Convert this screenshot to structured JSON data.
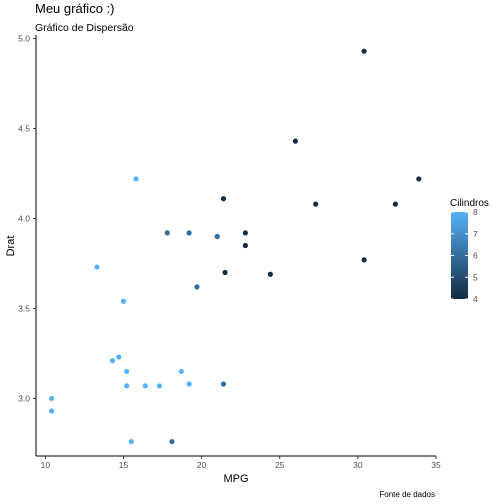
{
  "chart_data": {
    "type": "scatter",
    "title": "Meu gráfico :)",
    "subtitle": "Gráfico de Dispersão",
    "xlabel": "MPG",
    "ylabel": "Drat",
    "caption": "Fonte de dados",
    "xlim": [
      9.4,
      35.0
    ],
    "ylim": [
      2.68,
      5.02
    ],
    "x_ticks": [
      10,
      15,
      20,
      25,
      30,
      35
    ],
    "y_ticks": [
      3.0,
      3.5,
      4.0,
      4.5,
      5.0
    ],
    "grid": false,
    "legend": {
      "title": "Cilindros",
      "position": "right",
      "type": "continuous-colorbar",
      "range": [
        4,
        8
      ],
      "ticks": [
        4,
        5,
        6,
        7,
        8
      ],
      "low_color": "#132B43",
      "high_color": "#56B1F7"
    },
    "points": [
      {
        "x": 21.0,
        "y": 3.9,
        "color_value": 6
      },
      {
        "x": 21.0,
        "y": 3.9,
        "color_value": 6
      },
      {
        "x": 22.8,
        "y": 3.85,
        "color_value": 4
      },
      {
        "x": 21.4,
        "y": 3.08,
        "color_value": 6
      },
      {
        "x": 18.7,
        "y": 3.15,
        "color_value": 8
      },
      {
        "x": 18.1,
        "y": 2.76,
        "color_value": 6
      },
      {
        "x": 14.3,
        "y": 3.21,
        "color_value": 8
      },
      {
        "x": 24.4,
        "y": 3.69,
        "color_value": 4
      },
      {
        "x": 22.8,
        "y": 3.92,
        "color_value": 4
      },
      {
        "x": 19.2,
        "y": 3.92,
        "color_value": 6
      },
      {
        "x": 17.8,
        "y": 3.92,
        "color_value": 6
      },
      {
        "x": 16.4,
        "y": 3.07,
        "color_value": 8
      },
      {
        "x": 17.3,
        "y": 3.07,
        "color_value": 8
      },
      {
        "x": 15.2,
        "y": 3.07,
        "color_value": 8
      },
      {
        "x": 10.4,
        "y": 2.93,
        "color_value": 8
      },
      {
        "x": 10.4,
        "y": 3.0,
        "color_value": 8
      },
      {
        "x": 14.7,
        "y": 3.23,
        "color_value": 8
      },
      {
        "x": 32.4,
        "y": 4.08,
        "color_value": 4
      },
      {
        "x": 30.4,
        "y": 4.93,
        "color_value": 4
      },
      {
        "x": 33.9,
        "y": 4.22,
        "color_value": 4
      },
      {
        "x": 21.5,
        "y": 3.7,
        "color_value": 4
      },
      {
        "x": 15.5,
        "y": 2.76,
        "color_value": 8
      },
      {
        "x": 15.2,
        "y": 3.15,
        "color_value": 8
      },
      {
        "x": 13.3,
        "y": 3.73,
        "color_value": 8
      },
      {
        "x": 19.2,
        "y": 3.08,
        "color_value": 8
      },
      {
        "x": 27.3,
        "y": 4.08,
        "color_value": 4
      },
      {
        "x": 26.0,
        "y": 4.43,
        "color_value": 4
      },
      {
        "x": 30.4,
        "y": 3.77,
        "color_value": 4
      },
      {
        "x": 15.8,
        "y": 4.22,
        "color_value": 8
      },
      {
        "x": 19.7,
        "y": 3.62,
        "color_value": 6
      },
      {
        "x": 15.0,
        "y": 3.54,
        "color_value": 8
      },
      {
        "x": 21.4,
        "y": 4.11,
        "color_value": 4
      }
    ]
  }
}
